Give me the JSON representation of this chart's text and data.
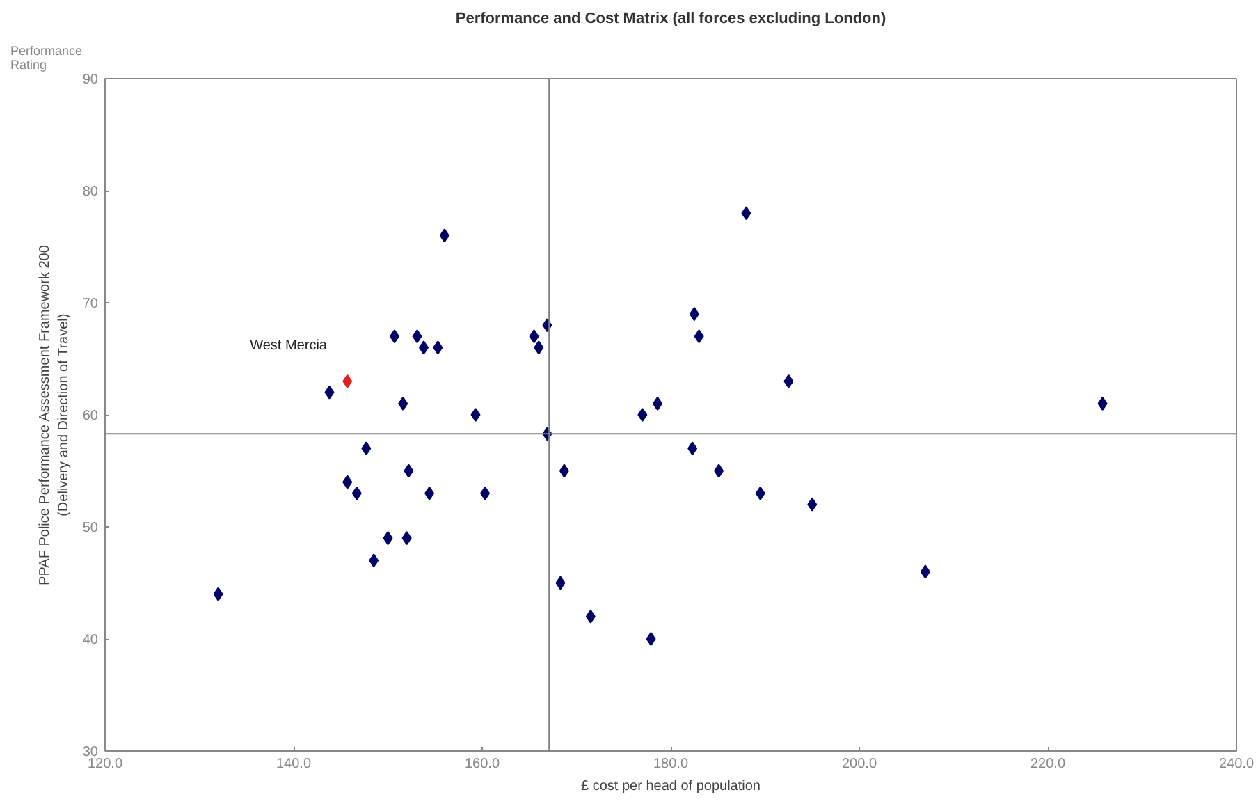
{
  "chart_data": {
    "type": "scatter",
    "title": "Performance and Cost Matrix (all forces excluding London)",
    "xlabel": "£ cost per head of population",
    "ylabel": "PPAF Police Performance Assessment Framework 200\n(Delivery and Direction of Travel)",
    "annotations": [
      "Performance\nRating"
    ],
    "marker": "diamond",
    "grid": false,
    "xlim": [
      120,
      240
    ],
    "ylim": [
      30,
      90
    ],
    "xticks": [
      {
        "value": 120,
        "label": "120.0"
      },
      {
        "value": 140,
        "label": "140.0"
      },
      {
        "value": 160,
        "label": "160.0"
      },
      {
        "value": 180,
        "label": "180.0"
      },
      {
        "value": 200,
        "label": "200.0"
      },
      {
        "value": 220,
        "label": "220.0"
      },
      {
        "value": 240,
        "label": "240.0"
      }
    ],
    "yticks": [
      30,
      40,
      50,
      60,
      70,
      80,
      90
    ],
    "ref_lines": [
      {
        "axis": "x",
        "value": 167.1,
        "label": null,
        "color": "#808080"
      },
      {
        "axis": "y",
        "value": 58.3,
        "label": null,
        "color": "#808080"
      }
    ],
    "series": [
      {
        "color": "#000066",
        "x": [
          132.0,
          143.8,
          150.7,
          153.1,
          153.8,
          155.3,
          156.0,
          151.6,
          159.3,
          165.5,
          166.0,
          166.9,
          166.9,
          147.7,
          145.7,
          146.7,
          152.2,
          154.4,
          160.3,
          150.0,
          152.0,
          148.5,
          168.7,
          168.3,
          171.5,
          177.9,
          177.0,
          178.6,
          182.3,
          182.5,
          183.0,
          188.0,
          185.1,
          189.5,
          195.0,
          192.5,
          207.0,
          225.8
        ],
        "values": [
          44,
          62,
          67,
          67,
          66,
          66,
          76,
          61,
          60,
          67,
          66,
          68,
          58.3,
          57,
          54,
          53,
          55,
          53,
          53,
          49,
          49,
          47,
          55,
          45,
          42,
          40,
          60,
          61,
          57,
          69,
          67,
          78,
          55,
          53,
          52,
          63,
          46,
          61
        ]
      },
      {
        "name": "West Mercia",
        "color": "#e02020",
        "x": [
          145.7
        ],
        "values": [
          63
        ]
      }
    ]
  }
}
